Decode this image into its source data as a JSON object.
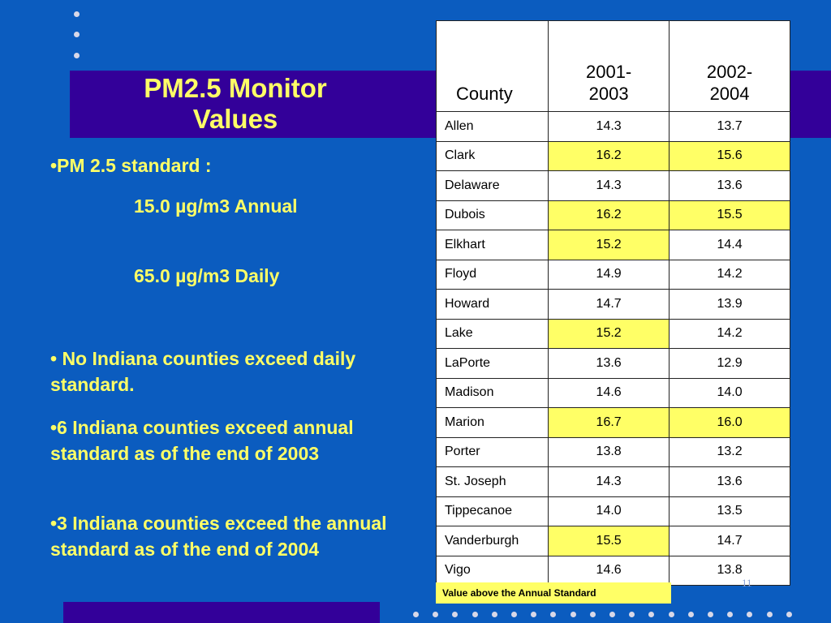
{
  "slide": {
    "title_line1": "PM2.5 Monitor",
    "title_line2": "Values",
    "standard_heading": "•PM 2.5 standard :",
    "annual_standard": "15.0 µg/m3 Annual",
    "daily_standard": "65.0 µg/m3 Daily",
    "bullet_daily": "• No Indiana counties exceed daily standard.",
    "bullet_2003": "•6 Indiana counties exceed annual standard as of the end of 2003",
    "bullet_2004": "•3 Indiana counties exceed the annual standard as of the end of 2004",
    "page_number": "11",
    "legend": "Value above the Annual Standard"
  },
  "colors": {
    "background": "#0b5cbf",
    "band": "#330099",
    "text_yellow": "#ffff66",
    "highlight": "#ffff66"
  },
  "table": {
    "headers": [
      "County",
      "2001-",
      "2003",
      "2002-",
      "2004"
    ],
    "rows": [
      {
        "county": "Allen",
        "v2003": "14.3",
        "v2004": "13.7",
        "h2003": false,
        "h2004": false
      },
      {
        "county": "Clark",
        "v2003": "16.2",
        "v2004": "15.6",
        "h2003": true,
        "h2004": true
      },
      {
        "county": "Delaware",
        "v2003": "14.3",
        "v2004": "13.6",
        "h2003": false,
        "h2004": false
      },
      {
        "county": "Dubois",
        "v2003": "16.2",
        "v2004": "15.5",
        "h2003": true,
        "h2004": true
      },
      {
        "county": "Elkhart",
        "v2003": "15.2",
        "v2004": "14.4",
        "h2003": true,
        "h2004": false
      },
      {
        "county": "Floyd",
        "v2003": "14.9",
        "v2004": "14.2",
        "h2003": false,
        "h2004": false
      },
      {
        "county": "Howard",
        "v2003": "14.7",
        "v2004": "13.9",
        "h2003": false,
        "h2004": false
      },
      {
        "county": "Lake",
        "v2003": "15.2",
        "v2004": "14.2",
        "h2003": true,
        "h2004": false
      },
      {
        "county": "LaPorte",
        "v2003": "13.6",
        "v2004": "12.9",
        "h2003": false,
        "h2004": false
      },
      {
        "county": "Madison",
        "v2003": "14.6",
        "v2004": "14.0",
        "h2003": false,
        "h2004": false
      },
      {
        "county": "Marion",
        "v2003": "16.7",
        "v2004": "16.0",
        "h2003": true,
        "h2004": true
      },
      {
        "county": "Porter",
        "v2003": "13.8",
        "v2004": "13.2",
        "h2003": false,
        "h2004": false
      },
      {
        "county": "St. Joseph",
        "v2003": "14.3",
        "v2004": "13.6",
        "h2003": false,
        "h2004": false
      },
      {
        "county": "Tippecanoe",
        "v2003": "14.0",
        "v2004": "13.5",
        "h2003": false,
        "h2004": false
      },
      {
        "county": "Vanderburgh",
        "v2003": "15.5",
        "v2004": "14.7",
        "h2003": true,
        "h2004": false
      },
      {
        "county": "Vigo",
        "v2003": "14.6",
        "v2004": "13.8",
        "h2003": false,
        "h2004": false
      }
    ]
  }
}
